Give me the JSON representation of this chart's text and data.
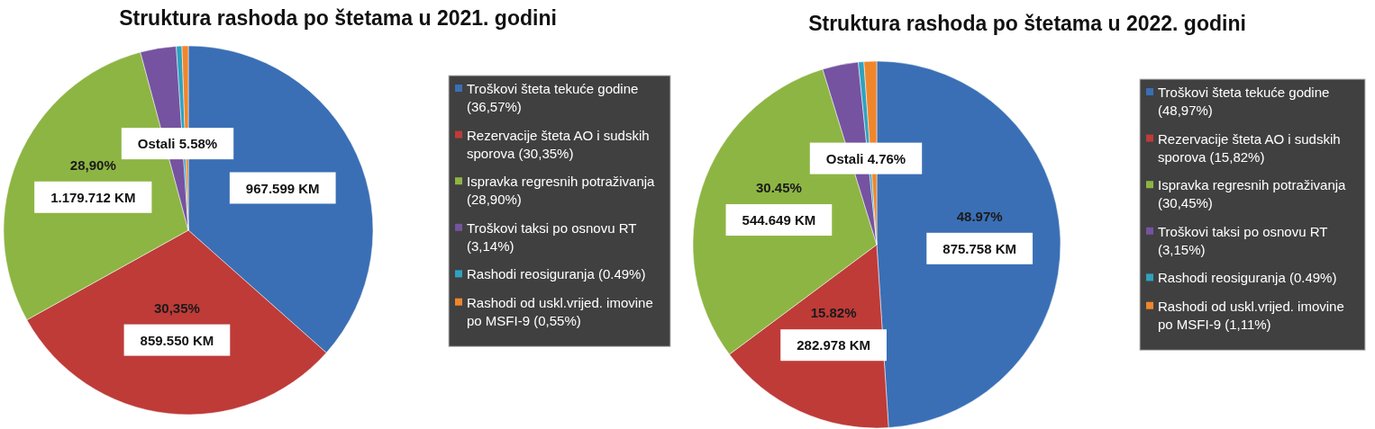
{
  "chart_data": [
    {
      "type": "pie",
      "title": "Struktura rashoda po štetama u 2021. godini",
      "categories": [
        "Troškovi šteta tekuće godine (36,57%)",
        "Rezervacije šteta AO i sudskih sporova (30,35%)",
        "Ispravka regresnih potraživanja (28,90%)",
        "Troškovi taksi po osnovu RT (3,14%)",
        "Rashodi reosiguranja (0.49%)",
        "Rashodi od uskl.vrijed. imovine po MSFI-9 (0,55%)"
      ],
      "values": [
        36.57,
        30.35,
        28.9,
        3.14,
        0.49,
        0.55
      ],
      "colors": [
        "#3a6fb5",
        "#be3b38",
        "#8db543",
        "#7553a0",
        "#2fa2c0",
        "#f0862c"
      ],
      "legend": "right",
      "annotations": [
        "Ostali 5.58%",
        {
          "text": "967.599 KM",
          "x": "Troškovi šteta tekuće godine (36,57%)"
        },
        {
          "text": "30,35%",
          "x": "Rezervacije šteta AO i sudskih sporova (30,35%)"
        },
        {
          "text": "859.550 KM",
          "x": "Rezervacije šteta AO i sudskih sporova (30,35%)"
        },
        {
          "text": "28,90%",
          "x": "Ispravka regresnih potraživanja (28,90%)"
        },
        {
          "text": "1.179.712 KM",
          "x": "Ispravka regresnih potraživanja (28,90%)"
        }
      ]
    },
    {
      "type": "pie",
      "title": "Struktura rashoda po štetama u 2022. godini",
      "categories": [
        "Troškovi šteta tekuće godine (48,97%)",
        "Rezervacije šteta AO i sudskih sporova (15,82%)",
        "Ispravka regresnih potraživanja (30,45%)",
        "Troškovi taksi po osnovu RT (3,15%)",
        "Rashodi reosiguranja (0.49%)",
        "Rashodi od uskl.vrijed. imovine po MSFI-9 (1,11%)"
      ],
      "values": [
        48.97,
        15.82,
        30.45,
        3.15,
        0.49,
        1.11
      ],
      "colors": [
        "#3a6fb5",
        "#be3b38",
        "#8db543",
        "#7553a0",
        "#2fa2c0",
        "#f0862c"
      ],
      "legend": "right",
      "annotations": [
        "Ostali 4.76%",
        {
          "text": "48.97%",
          "x": "Troškovi šteta tekuće godine (48,97%)"
        },
        {
          "text": "875.758 KM",
          "x": "Troškovi šteta tekuće godine (48,97%)"
        },
        {
          "text": "15.82%",
          "x": "Rezervacije šteta AO i sudskih sporova (15,82%)"
        },
        {
          "text": "282.978 KM",
          "x": "Rezervacije šteta AO i sudskih sporova (15,82%)"
        },
        {
          "text": "30.45%",
          "x": "Ispravka regresnih potraživanja (30,45%)"
        },
        {
          "text": "544.649 KM",
          "x": "Ispravka regresnih potraživanja (30,45%)"
        }
      ]
    }
  ]
}
